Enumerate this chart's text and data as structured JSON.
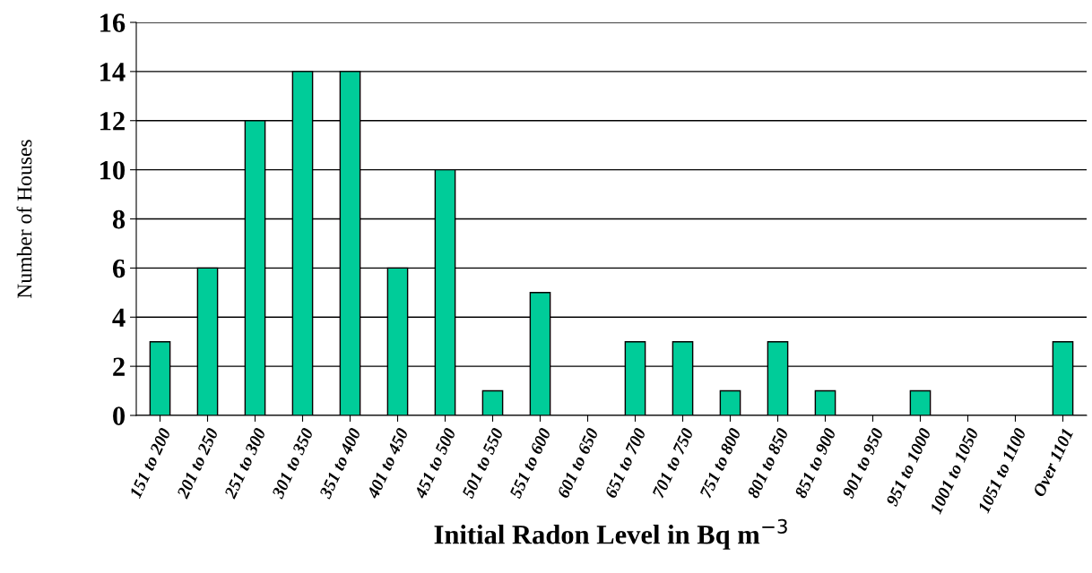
{
  "chart_data": {
    "type": "bar",
    "xlabel": "Initial Radon Level in Bq m$^{−3}$",
    "ylabel": "Number of Houses",
    "categories": [
      "151 to 200",
      "201 to 250",
      "251 to 300",
      "301 to 350",
      "351 to 400",
      "401 to 450",
      "451 to 500",
      "501 to 550",
      "551 to 600",
      "601 to 650",
      "651 to 700",
      "701 to 750",
      "751 to 800",
      "801 to 850",
      "851 to 900",
      "901 to 950",
      "951 to 1000",
      "1001 to 1050",
      "1051 to 1100",
      "Over 1101"
    ],
    "values": [
      3,
      6,
      12,
      14,
      14,
      6,
      10,
      1,
      5,
      0,
      3,
      3,
      1,
      3,
      1,
      0,
      1,
      0,
      0,
      3
    ],
    "color": "#00cc99",
    "ylim": [
      0,
      16
    ],
    "yticks": [
      0,
      2,
      4,
      6,
      8,
      10,
      12,
      14,
      16
    ],
    "grid": "y"
  }
}
